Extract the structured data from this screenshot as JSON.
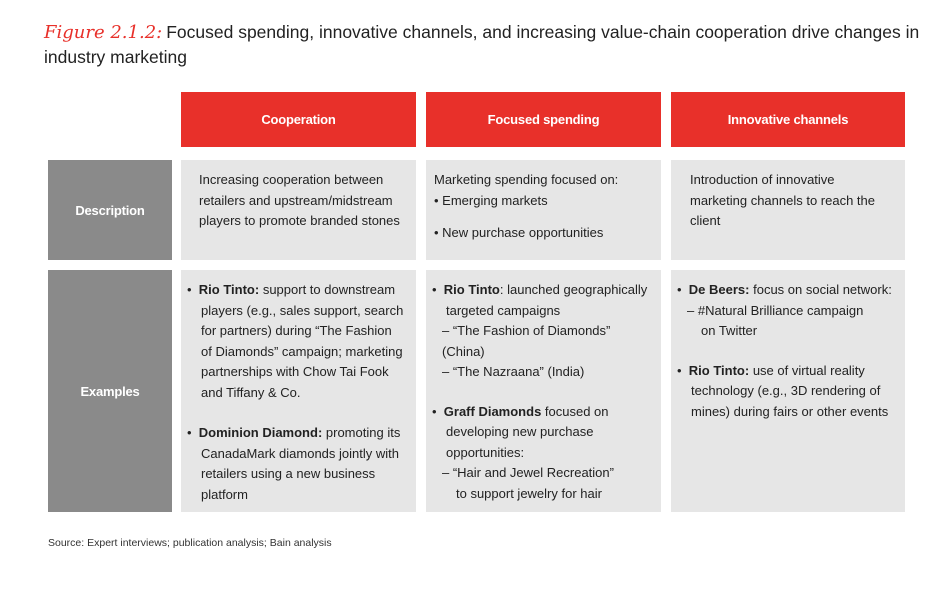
{
  "title": {
    "figure_label": "Figure 2.1.2:",
    "text": "Focused spending, innovative channels, and increasing value-chain cooperation drive changes in industry marketing"
  },
  "columns": [
    "Cooperation",
    "Focused spending",
    "Innovative channels"
  ],
  "rows": [
    "Description",
    "Examples"
  ],
  "description": {
    "cooperation": "Increasing cooperation between retailers and upstream/midstream players to promote branded stones",
    "focused_intro": "Marketing spending focused on:",
    "focused_bullets": [
      "Emerging markets",
      "New purchase opportunities"
    ],
    "innovative": "Introduction of innovative marketing channels to reach the client"
  },
  "examples": {
    "cooperation": [
      {
        "bold": "Rio Tinto:",
        "text": " support to downstream players (e.g., sales support, search for partners) during “The Fashion of Diamonds” campaign; marketing partnerships with Chow Tai Fook and Tiffany & Co."
      },
      {
        "bold": "Dominion Diamond:",
        "text": " promoting its CanadaMark diamonds jointly with retailers using a new business platform"
      }
    ],
    "focused": [
      {
        "bold": "Rio Tinto",
        "text": ": launched geographically targeted campaigns",
        "subs": [
          "– “The Fashion of Diamonds” (China)",
          "– “The Nazraana” (India)"
        ]
      },
      {
        "bold": "Graff Diamonds",
        "text": " focused on developing new purchase opportunities:",
        "subs": [
          "– “Hair and Jewel Recreation”",
          "to support jewelry for hair"
        ]
      }
    ],
    "innovative": [
      {
        "bold": "De Beers:",
        "text": " focus on social network:",
        "subs": [
          "– #Natural Brilliance campaign",
          "on Twitter"
        ]
      },
      {
        "bold": "Rio Tinto:",
        "text": " use of virtual reality technology (e.g., 3D rendering of mines) during fairs or other events"
      }
    ]
  },
  "source": "Source:  Expert interviews; publication analysis; Bain analysis",
  "colors": {
    "accent": "#e8302a",
    "row_label": "#8a8a8a",
    "cell": "#e6e6e6"
  }
}
